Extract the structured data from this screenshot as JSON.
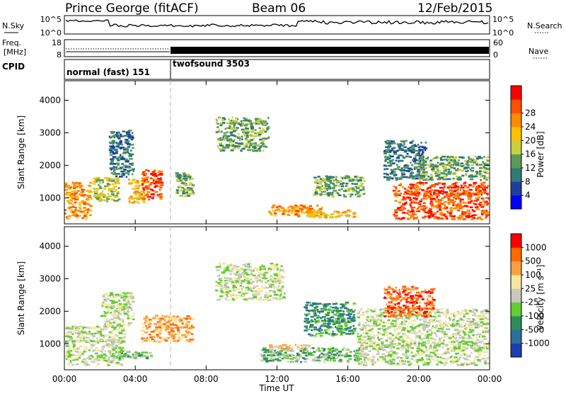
{
  "header": {
    "station": "Prince George (fitACF)",
    "beam": "Beam 06",
    "date": "12/Feb/2015"
  },
  "top_panels": {
    "nsky_label": "N.Sky",
    "nsearch_label": "N.Search",
    "freq_label_line1": "Freq.",
    "freq_label_line2": "[MHz]",
    "nave_label": "Nave",
    "cpid_label": "CPID",
    "noise_left_ticks": [
      "10^5",
      "10^0"
    ],
    "noise_right_ticks": [
      "10^5",
      "10^0"
    ],
    "freq_ticks": [
      "18",
      "8"
    ],
    "nave_ticks": [
      "60",
      "0"
    ],
    "cpid_modes": [
      {
        "name": "normal (fast) 151",
        "start_hour": 0
      },
      {
        "name": "twofsound 3503",
        "start_hour": 6
      }
    ]
  },
  "chart_data": [
    {
      "type": "heatmap",
      "title": "",
      "quantity": "Power",
      "xlabel": "Time UT",
      "ylabel": "Slant Range [km]",
      "xlim": [
        0,
        24
      ],
      "ylim": [
        200,
        4600
      ],
      "x_ticks": [
        "00:00",
        "04:00",
        "08:00",
        "12:00",
        "16:00",
        "20:00",
        "00:00"
      ],
      "y_ticks": [
        "1000",
        "2000",
        "3000",
        "4000"
      ],
      "colorbar": {
        "label": "Power [dB]",
        "ticks": [
          "4",
          "8",
          "12",
          "16",
          "20",
          "24",
          "28"
        ],
        "colors": [
          "#0000ff",
          "#1f3fa0",
          "#2e7a74",
          "#5a9b56",
          "#c8d040",
          "#ffc000",
          "#ff8c00",
          "#ff5000",
          "#ff0000"
        ]
      },
      "echo_regions": [
        {
          "t0": 0.0,
          "t1": 1.6,
          "r0": 300,
          "r1": 1500,
          "level": 6
        },
        {
          "t0": 1.6,
          "t1": 3.2,
          "r0": 850,
          "r1": 1650,
          "level": 4
        },
        {
          "t0": 2.5,
          "t1": 4.0,
          "r0": 1600,
          "r1": 3100,
          "level": 2
        },
        {
          "t0": 3.6,
          "t1": 4.6,
          "r0": 800,
          "r1": 1600,
          "level": 5
        },
        {
          "t0": 4.3,
          "t1": 5.6,
          "r0": 900,
          "r1": 1900,
          "level": 7
        },
        {
          "t0": 6.2,
          "t1": 7.4,
          "r0": 1000,
          "r1": 1800,
          "level": 3
        },
        {
          "t0": 8.5,
          "t1": 11.6,
          "r0": 2400,
          "r1": 3500,
          "level": 3
        },
        {
          "t0": 11.5,
          "t1": 14.6,
          "r0": 400,
          "r1": 800,
          "level": 6
        },
        {
          "t0": 13.5,
          "t1": 16.5,
          "r0": 350,
          "r1": 650,
          "level": 5
        },
        {
          "t0": 14.0,
          "t1": 17.0,
          "r0": 1000,
          "r1": 1700,
          "level": 3
        },
        {
          "t0": 18.0,
          "t1": 20.5,
          "r0": 1500,
          "r1": 2800,
          "level": 2
        },
        {
          "t0": 18.5,
          "t1": 24.0,
          "r0": 300,
          "r1": 1500,
          "level": 7
        },
        {
          "t0": 20.0,
          "t1": 24.0,
          "r0": 1500,
          "r1": 2300,
          "level": 3
        }
      ]
    },
    {
      "type": "heatmap",
      "title": "",
      "quantity": "Velocity",
      "xlabel": "Time UT",
      "ylabel": "Slant Range [km]",
      "xlim": [
        0,
        24
      ],
      "ylim": [
        200,
        4600
      ],
      "x_ticks": [
        "00:00",
        "04:00",
        "08:00",
        "12:00",
        "16:00",
        "20:00",
        "00:00"
      ],
      "y_ticks": [
        "1000",
        "2000",
        "3000",
        "4000"
      ],
      "colorbar": {
        "label": "Velocity [m s⁻¹]",
        "ticks": [
          "1000",
          "500",
          "100",
          "25",
          "-25",
          "-100",
          "-500",
          "-1000"
        ],
        "colors": [
          "#1c3cb4",
          "#2b6f9a",
          "#2e8c58",
          "#66cc33",
          "#c8c8c0",
          "#f5e7a0",
          "#ffa040",
          "#ff6a00",
          "#ff0000"
        ]
      },
      "echo_regions": [
        {
          "t0": 0.0,
          "t1": 3.5,
          "r0": 300,
          "r1": 1600,
          "level": 4
        },
        {
          "t0": 2.0,
          "t1": 4.0,
          "r0": 1500,
          "r1": 2600,
          "level": 4
        },
        {
          "t0": 4.3,
          "t1": 7.4,
          "r0": 1000,
          "r1": 1900,
          "level": 6
        },
        {
          "t0": 3.0,
          "t1": 5.0,
          "r0": 500,
          "r1": 800,
          "level": 3
        },
        {
          "t0": 8.5,
          "t1": 12.5,
          "r0": 2300,
          "r1": 3500,
          "level": 4
        },
        {
          "t0": 11.0,
          "t1": 17.0,
          "r0": 400,
          "r1": 900,
          "level": 3
        },
        {
          "t0": 11.5,
          "t1": 14.0,
          "r0": 800,
          "r1": 1000,
          "level": 5
        },
        {
          "t0": 13.5,
          "t1": 16.5,
          "r0": 1200,
          "r1": 2300,
          "level": 2
        },
        {
          "t0": 16.5,
          "t1": 24.0,
          "r0": 300,
          "r1": 2100,
          "level": 4
        },
        {
          "t0": 18.0,
          "t1": 21.0,
          "r0": 1800,
          "r1": 2800,
          "level": 7
        }
      ]
    }
  ]
}
